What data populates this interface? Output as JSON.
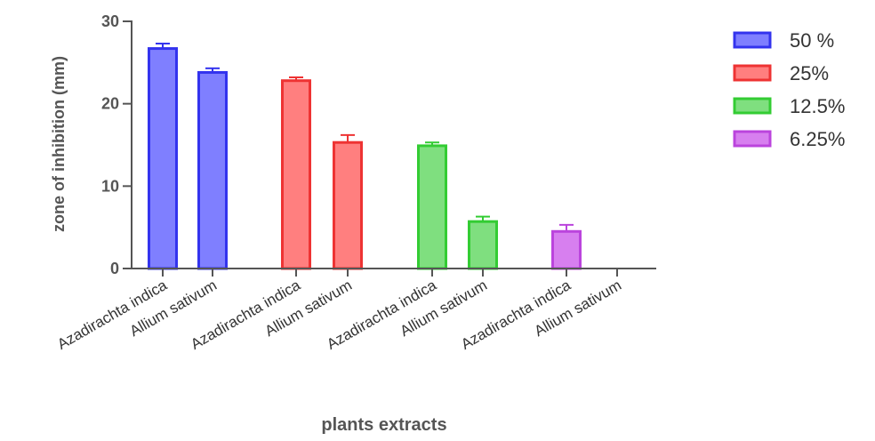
{
  "chart_data": {
    "type": "bar",
    "xlabel": "plants extracts",
    "ylabel": "zone of inhibition (mm)",
    "ylim": [
      0,
      30
    ],
    "yticks": [
      "0",
      "10",
      "20",
      "30"
    ],
    "legend_position": "top-right",
    "categories": [
      "Azadirachta indica",
      "Allium sativum",
      "Azadirachta indica",
      "Allium sativum",
      "Azadirachta indica",
      "Allium sativum",
      "Azadirachta indica",
      "Allium sativum"
    ],
    "series": [
      {
        "name": "50 %",
        "fill": "#7f7fff",
        "stroke": "#3333ee",
        "values": [
          26.7,
          23.8,
          null,
          null,
          null,
          null,
          null,
          null
        ],
        "errors": [
          0.6,
          0.5,
          null,
          null,
          null,
          null,
          null,
          null
        ]
      },
      {
        "name": "25%",
        "fill": "#ff7f7f",
        "stroke": "#ee3333",
        "values": [
          null,
          null,
          22.8,
          15.3,
          null,
          null,
          null,
          null
        ],
        "errors": [
          null,
          null,
          0.4,
          0.9,
          null,
          null,
          null,
          null
        ]
      },
      {
        "name": "12.5%",
        "fill": "#7fdf7f",
        "stroke": "#33cc33",
        "values": [
          null,
          null,
          null,
          null,
          14.9,
          5.7,
          null,
          null
        ],
        "errors": [
          null,
          null,
          null,
          null,
          0.4,
          0.6,
          null,
          null
        ]
      },
      {
        "name": "6.25%",
        "fill": "#d77fef",
        "stroke": "#bb44dd",
        "values": [
          null,
          null,
          null,
          null,
          null,
          null,
          4.5,
          0
        ],
        "errors": [
          null,
          null,
          null,
          null,
          null,
          null,
          0.8,
          null
        ]
      }
    ]
  }
}
